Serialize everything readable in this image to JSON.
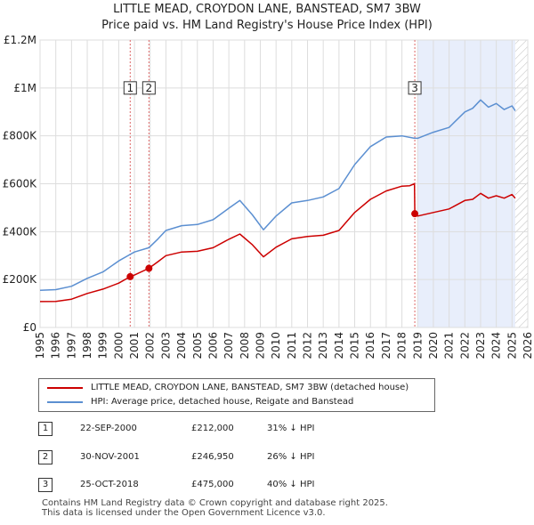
{
  "chart_data": {
    "type": "line",
    "title_line1": "LITTLE MEAD, CROYDON LANE, BANSTEAD, SM7 3BW",
    "title_line2": "Price paid vs. HM Land Registry's House Price Index (HPI)",
    "x_ticks": [
      "1995",
      "1996",
      "1997",
      "1998",
      "1999",
      "2000",
      "2001",
      "2002",
      "2003",
      "2004",
      "2005",
      "2006",
      "2007",
      "2008",
      "2009",
      "2010",
      "2011",
      "2012",
      "2013",
      "2014",
      "2015",
      "2016",
      "2017",
      "2018",
      "2019",
      "2020",
      "2021",
      "2022",
      "2023",
      "2024",
      "2025",
      "2026"
    ],
    "y_ticks": [
      {
        "value": 0,
        "label": "£0"
      },
      {
        "value": 200000,
        "label": "£200K"
      },
      {
        "value": 400000,
        "label": "£400K"
      },
      {
        "value": 600000,
        "label": "£600K"
      },
      {
        "value": 800000,
        "label": "£800K"
      },
      {
        "value": 1000000,
        "label": "£1M"
      },
      {
        "value": 1200000,
        "label": "£1.2M"
      }
    ],
    "xlim": [
      1995,
      2026
    ],
    "ylim": [
      0,
      1200000
    ],
    "series": [
      {
        "name": "LITTLE MEAD, CROYDON LANE, BANSTEAD, SM7 3BW (detached house)",
        "color": "#cc0000",
        "x": [
          1995,
          1996,
          1997,
          1998,
          1999,
          2000,
          2000.73,
          2001,
          2001.92,
          2002.5,
          2003,
          2004,
          2005,
          2006,
          2007,
          2007.7,
          2008.5,
          2009.2,
          2010,
          2011,
          2012,
          2013,
          2014,
          2015,
          2016,
          2017,
          2018,
          2018.5,
          2018.8,
          2018.82,
          2019,
          2020,
          2021,
          2022,
          2022.5,
          2023,
          2023.5,
          2024,
          2024.5,
          2025,
          2025.2
        ],
        "y": [
          108000,
          109000,
          118000,
          142000,
          160000,
          185000,
          212000,
          219000,
          246950,
          275000,
          300000,
          315000,
          318000,
          333000,
          368000,
          390000,
          345000,
          295000,
          335000,
          370000,
          380000,
          385000,
          405000,
          480000,
          535000,
          570000,
          590000,
          592000,
          600000,
          475000,
          465000,
          480000,
          495000,
          530000,
          535000,
          560000,
          540000,
          550000,
          540000,
          555000,
          540000
        ]
      },
      {
        "name": "HPI: Average price, detached house, Reigate and Banstead",
        "color": "#5b8fd1",
        "x": [
          1995,
          1996,
          1997,
          1998,
          1999,
          2000,
          2000.73,
          2001,
          2001.92,
          2002.5,
          2003,
          2004,
          2005,
          2006,
          2007,
          2007.7,
          2008.5,
          2009.2,
          2010,
          2011,
          2012,
          2013,
          2014,
          2015,
          2016,
          2017,
          2018,
          2018.8,
          2019,
          2020,
          2021,
          2022,
          2022.5,
          2023,
          2023.5,
          2024,
          2024.5,
          2025,
          2025.2
        ],
        "y": [
          155000,
          158000,
          172000,
          205000,
          232000,
          278000,
          305000,
          315000,
          333000,
          370000,
          405000,
          425000,
          430000,
          450000,
          498000,
          530000,
          470000,
          408000,
          465000,
          520000,
          530000,
          545000,
          580000,
          680000,
          755000,
          795000,
          800000,
          790000,
          790000,
          815000,
          835000,
          900000,
          915000,
          950000,
          920000,
          935000,
          910000,
          925000,
          905000
        ]
      }
    ],
    "sales": [
      {
        "num": "1",
        "x": 2000.73,
        "y": 212000
      },
      {
        "num": "2",
        "x": 2001.92,
        "y": 246950
      },
      {
        "num": "3",
        "x": 2018.82,
        "y": 475000
      }
    ],
    "hpi_shade_from": 2019.0,
    "hpi_shade_to": 2025.2
  },
  "legend": {
    "property_label": "LITTLE MEAD, CROYDON LANE, BANSTEAD, SM7 3BW (detached house)",
    "hpi_label": "HPI: Average price, detached house, Reigate and Banstead"
  },
  "transactions": [
    {
      "num": "1",
      "date": "22-SEP-2000",
      "price": "£212,000",
      "hpi": "31% ↓ HPI"
    },
    {
      "num": "2",
      "date": "30-NOV-2001",
      "price": "£246,950",
      "hpi": "26% ↓ HPI"
    },
    {
      "num": "3",
      "date": "25-OCT-2018",
      "price": "£475,000",
      "hpi": "40% ↓ HPI"
    }
  ],
  "footer": {
    "line1": "Contains HM Land Registry data © Crown copyright and database right 2025.",
    "line2": "This data is licensed under the Open Government Licence v3.0."
  },
  "colors": {
    "property": "#cc0000",
    "hpi": "#5b8fd1",
    "grid": "#dddddd",
    "shade": "#e8eefb",
    "hatch": "#bbbbbb",
    "marker_line": "#dd6666"
  }
}
